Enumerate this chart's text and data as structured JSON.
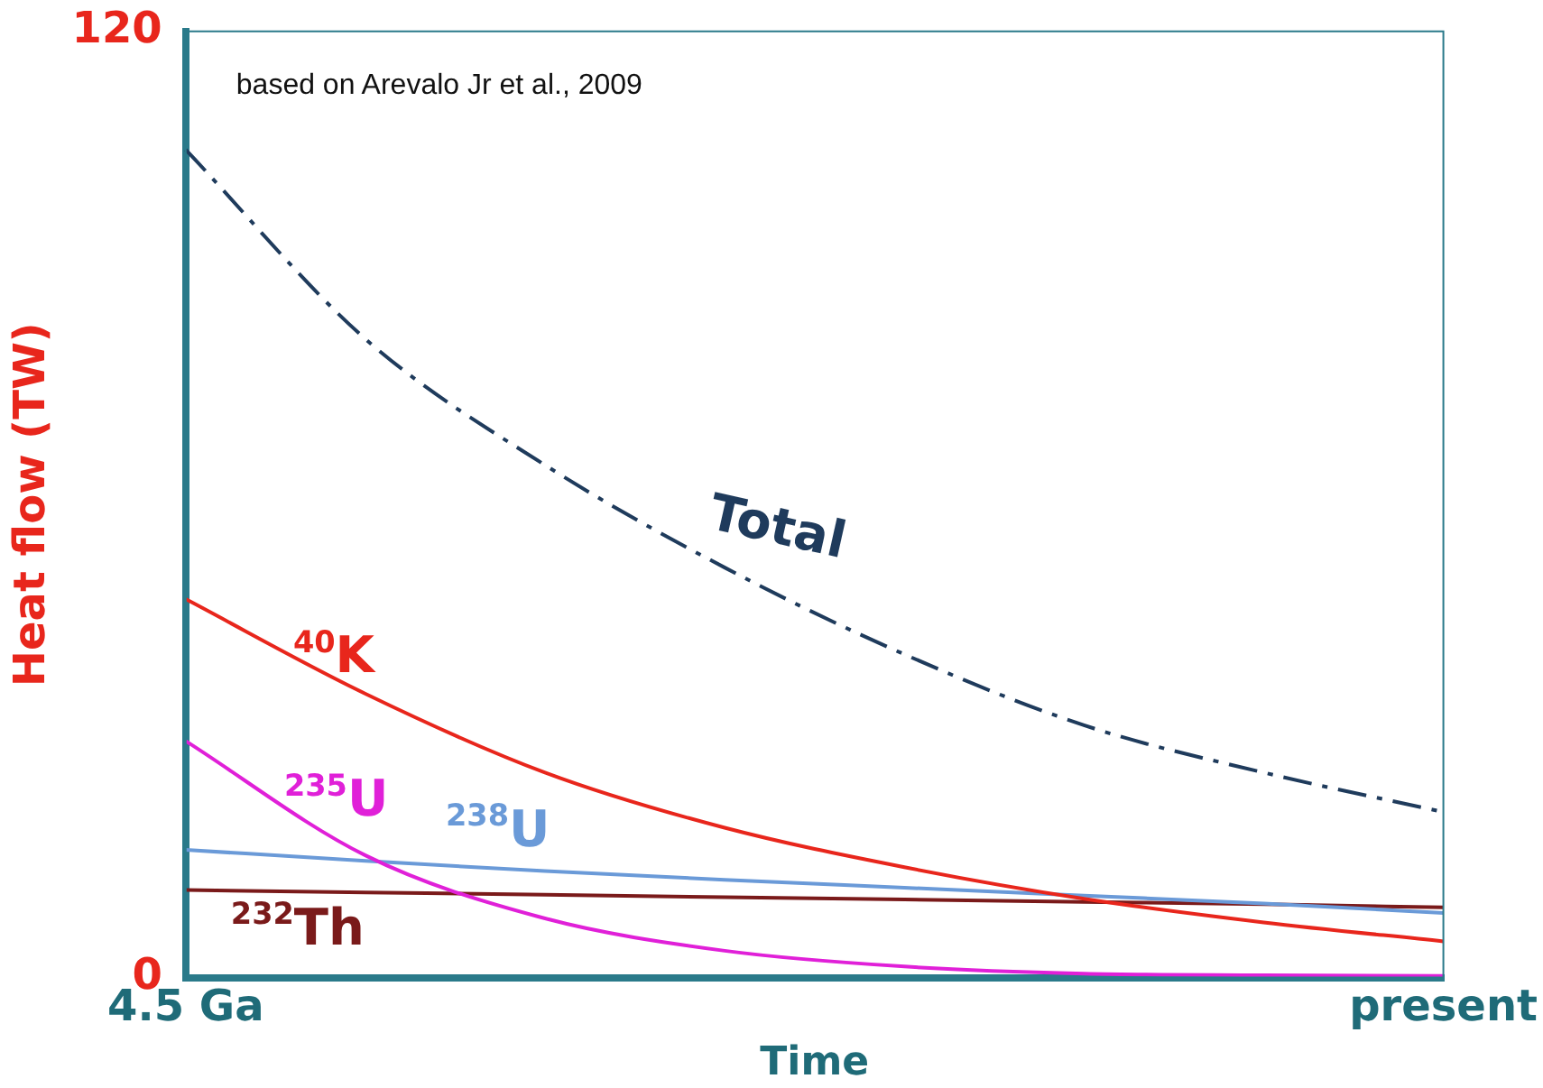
{
  "chart_data": {
    "type": "line",
    "xlabel": "Time",
    "ylabel": "Heat flow (TW)",
    "categories": [
      "4.5 Ga",
      null,
      null,
      null,
      null,
      null,
      null,
      "present"
    ],
    "ylim": [
      0,
      120
    ],
    "yticks": [
      0,
      120
    ],
    "grid": false,
    "legend": false,
    "marker": "none",
    "annotations": [
      "based on Arevalo Jr et al., 2009"
    ],
    "series": [
      {
        "name": "Total",
        "color": "#1f3b5c",
        "line_style": "dashed",
        "values": [
          105,
          81,
          65,
          52,
          41,
          32,
          26,
          21
        ]
      },
      {
        "name": "$^{40}$K",
        "color": "#e8261c",
        "line_style": "solid",
        "values": [
          48,
          36,
          26,
          19,
          14,
          10,
          7,
          4.6
        ]
      },
      {
        "name": "$^{235}$U",
        "color": "#e020d8",
        "line_style": "solid",
        "values": [
          30,
          15.5,
          7.5,
          3.4,
          1.4,
          0.5,
          0.3,
          0.2
        ]
      },
      {
        "name": "$^{238}$U",
        "color": "#6a9ad8",
        "line_style": "solid",
        "values": [
          16.2,
          14.8,
          13.5,
          12.4,
          11.4,
          10.4,
          9.4,
          8.2
        ]
      },
      {
        "name": "$^{232}$Th",
        "color": "#7a1a1a",
        "line_style": "solid",
        "values": [
          11.1,
          10.8,
          10.5,
          10.2,
          9.9,
          9.6,
          9.3,
          8.9
        ]
      }
    ]
  }
}
